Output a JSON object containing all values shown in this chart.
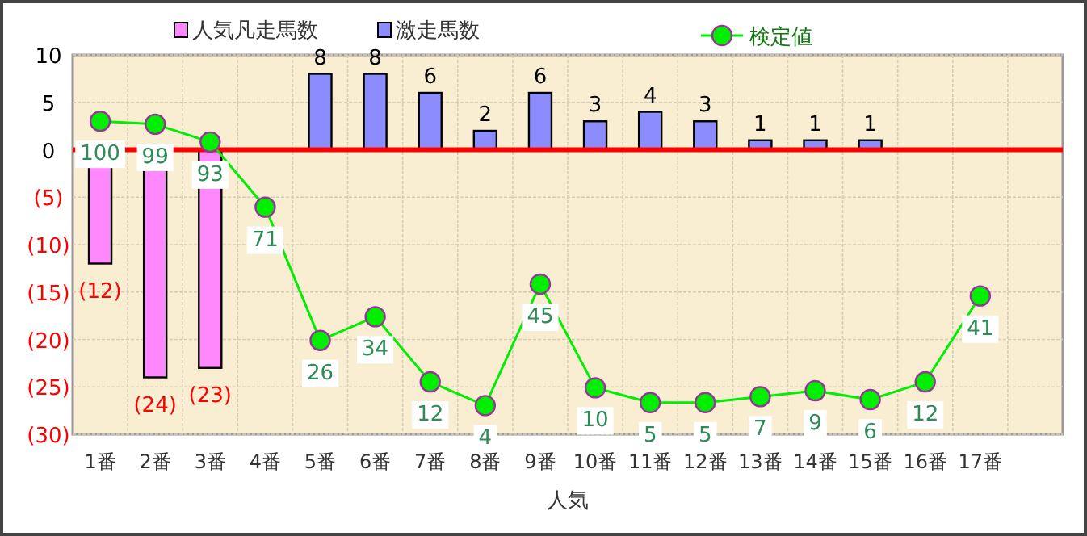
{
  "chart_data": {
    "type": "bar",
    "xlabel": "人気",
    "categories": [
      "1番",
      "2番",
      "3番",
      "4番",
      "5番",
      "6番",
      "7番",
      "8番",
      "9番",
      "10番",
      "11番",
      "12番",
      "13番",
      "14番",
      "15番",
      "16番",
      "17番",
      null
    ],
    "series": [
      {
        "name": "人気凡走馬数",
        "color": "#ff88ff",
        "values": [
          -12,
          -24,
          -23,
          null,
          null,
          null,
          null,
          null,
          null,
          null,
          null,
          null,
          null,
          null,
          null,
          null,
          null,
          null
        ],
        "value_labels": [
          "(12)",
          "(24)",
          "(23)",
          null,
          null,
          null,
          null,
          null,
          null,
          null,
          null,
          null,
          null,
          null,
          null,
          null,
          null,
          null
        ]
      },
      {
        "name": "激走馬数",
        "color": "#8c8cff",
        "values": [
          null,
          null,
          null,
          null,
          8,
          8,
          6,
          2,
          6,
          3,
          4,
          3,
          1,
          1,
          1,
          null,
          null,
          null
        ],
        "value_labels": [
          null,
          null,
          null,
          null,
          "8",
          "8",
          "6",
          "2",
          "6",
          "3",
          "4",
          "3",
          "1",
          "1",
          "1",
          null,
          null,
          null
        ]
      },
      {
        "name": "検定値",
        "type": "line",
        "axis": "y2",
        "color": "#00ee00",
        "marker": "circle",
        "values": [
          100,
          99,
          93,
          71,
          26,
          34,
          12,
          4,
          45,
          10,
          5,
          5,
          7,
          9,
          6,
          12,
          41,
          null
        ],
        "value_labels": [
          "100",
          "99",
          "93",
          "71",
          "26",
          "34",
          "12",
          "4",
          "45",
          "10",
          "5",
          "5",
          "7",
          "9",
          "6",
          "12",
          "41",
          null
        ]
      }
    ],
    "ylim": [
      -30,
      10
    ],
    "yticks": [
      10,
      5,
      0,
      {
        "value": -5,
        "label": "(5)"
      },
      {
        "value": -10,
        "label": "(10)"
      },
      {
        "value": -15,
        "label": "(15)"
      },
      {
        "value": -20,
        "label": "(20)"
      },
      {
        "value": -25,
        "label": "(25)"
      },
      {
        "value": -30,
        "label": "(30)"
      }
    ],
    "y2lim": [
      -5.7,
      122.4
    ],
    "grid": true,
    "legend": "top",
    "ref_lines": [
      {
        "axis": "y",
        "value": 0,
        "color": "#ff0000"
      }
    ]
  }
}
